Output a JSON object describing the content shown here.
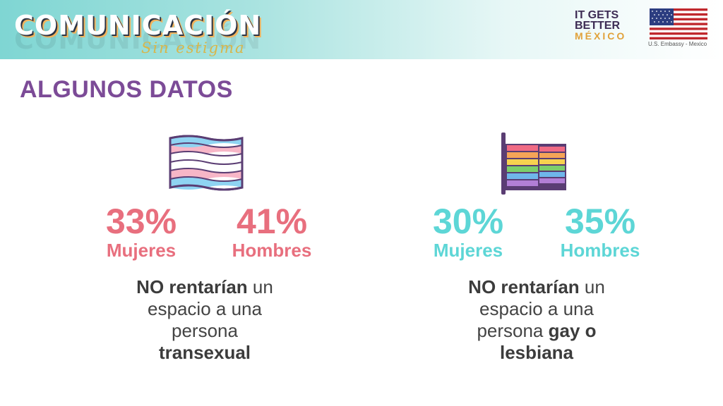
{
  "header": {
    "brand": "COMUNICACIÓN",
    "tagline": "Sin estigma",
    "logo_line1": "IT GETS",
    "logo_line2": "BETTER",
    "logo_line3": "MÉXICO",
    "embassy": "U.S. Embassy - Mexico"
  },
  "section_title": "ALGUNOS DATOS",
  "left": {
    "icon": "trans-flag-icon",
    "stat1_value": "33%",
    "stat1_label": "Mujeres",
    "stat2_value": "41%",
    "stat2_label": "Hombres",
    "desc_bold1": "NO rentarían",
    "desc_text1": " un",
    "desc_text2": "espacio a una",
    "desc_text3": "persona",
    "desc_bold2": "transexual",
    "color": "#e86f7e"
  },
  "right": {
    "icon": "rainbow-flag-icon",
    "stat1_value": "30%",
    "stat1_label": "Mujeres",
    "stat2_value": "35%",
    "stat2_label": "Hombres",
    "desc_bold1": "NO rentarían",
    "desc_text1": " un",
    "desc_text2": "espacio a una",
    "desc_text3": "persona ",
    "desc_bold2": "gay o",
    "desc_bold3": "lesbiana",
    "color": "#5dd6d6"
  }
}
